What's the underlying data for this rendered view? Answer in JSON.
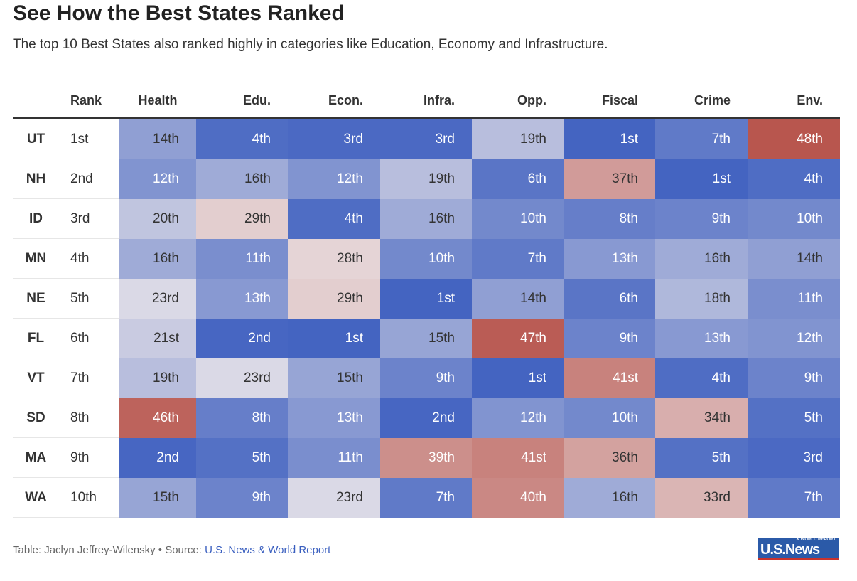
{
  "title": "See How the Best States Ranked",
  "subtitle": "The top 10 Best States also ranked highly in categories like Education, Economy and Infrastructure.",
  "footer": {
    "prefix": "Table: Jaclyn Jeffrey-Wilensky • Source: ",
    "source": "U.S. News & World Report",
    "logo": "U.S.News",
    "logo_small": "& WORLD REPORT"
  },
  "colors": {
    "best": "#4464c1",
    "mid": "#ece7ea",
    "worst": "#b8564e"
  },
  "chart_data": {
    "type": "table",
    "columns": [
      "",
      "Rank",
      "Health",
      "Edu.",
      "Econ.",
      "Infra.",
      "Opp.",
      "Fiscal",
      "Crime",
      "Env."
    ],
    "rows": [
      {
        "state": "UT",
        "rank": "1st",
        "values": [
          14,
          4,
          3,
          3,
          19,
          1,
          7,
          48
        ]
      },
      {
        "state": "NH",
        "rank": "2nd",
        "values": [
          12,
          16,
          12,
          19,
          6,
          37,
          1,
          4
        ]
      },
      {
        "state": "ID",
        "rank": "3rd",
        "values": [
          20,
          29,
          4,
          16,
          10,
          8,
          9,
          10
        ]
      },
      {
        "state": "MN",
        "rank": "4th",
        "values": [
          16,
          11,
          28,
          10,
          7,
          13,
          16,
          14
        ]
      },
      {
        "state": "NE",
        "rank": "5th",
        "values": [
          23,
          13,
          29,
          1,
          14,
          6,
          18,
          11
        ]
      },
      {
        "state": "FL",
        "rank": "6th",
        "values": [
          21,
          2,
          1,
          15,
          47,
          9,
          13,
          12
        ]
      },
      {
        "state": "VT",
        "rank": "7th",
        "values": [
          19,
          23,
          15,
          9,
          1,
          41,
          4,
          9
        ]
      },
      {
        "state": "SD",
        "rank": "8th",
        "values": [
          46,
          8,
          13,
          2,
          12,
          10,
          34,
          5
        ]
      },
      {
        "state": "MA",
        "rank": "9th",
        "values": [
          2,
          5,
          11,
          39,
          41,
          36,
          5,
          3
        ]
      },
      {
        "state": "WA",
        "rank": "10th",
        "values": [
          15,
          9,
          23,
          7,
          40,
          16,
          33,
          7
        ]
      }
    ]
  }
}
